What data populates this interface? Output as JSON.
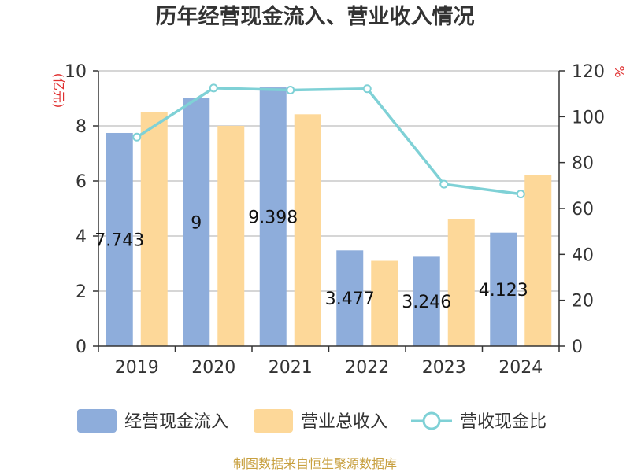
{
  "chart_data": {
    "type": "bar",
    "title": "历年经营现金流入、营业收入情况",
    "categories": [
      "2019",
      "2020",
      "2021",
      "2022",
      "2023",
      "2024"
    ],
    "series": [
      {
        "name": "经营现金流入",
        "type": "bar",
        "axis": "left",
        "color": "#8eaddb",
        "values": [
          7.743,
          9,
          9.398,
          3.477,
          3.246,
          4.123
        ],
        "data_labels": [
          "7.743",
          "9",
          "9.398",
          "3.477",
          "3.246",
          "4.123"
        ]
      },
      {
        "name": "营业总收入",
        "type": "bar",
        "axis": "left",
        "color": "#fdd899",
        "values": [
          8.5,
          8.0,
          8.42,
          3.1,
          4.6,
          6.22
        ]
      },
      {
        "name": "营收现金比",
        "type": "line",
        "axis": "right",
        "color": "#7fd1d6",
        "values": [
          91.1,
          112.5,
          111.6,
          112.2,
          70.6,
          66.3
        ]
      }
    ],
    "y_left": {
      "label": "(亿元)",
      "label_color": "#e03030",
      "ylim": [
        0,
        10
      ],
      "ticks": [
        "0",
        "2",
        "4",
        "6",
        "8",
        "10"
      ]
    },
    "y_right": {
      "label": "%",
      "label_color": "#e03030",
      "ylim": [
        0,
        120
      ],
      "ticks": [
        "0",
        "20",
        "40",
        "60",
        "80",
        "100",
        "120"
      ]
    },
    "grid": true,
    "legend_position": "bottom"
  },
  "source_text": "制图数据来自恒生聚源数据库",
  "source_color": "#c8a040"
}
